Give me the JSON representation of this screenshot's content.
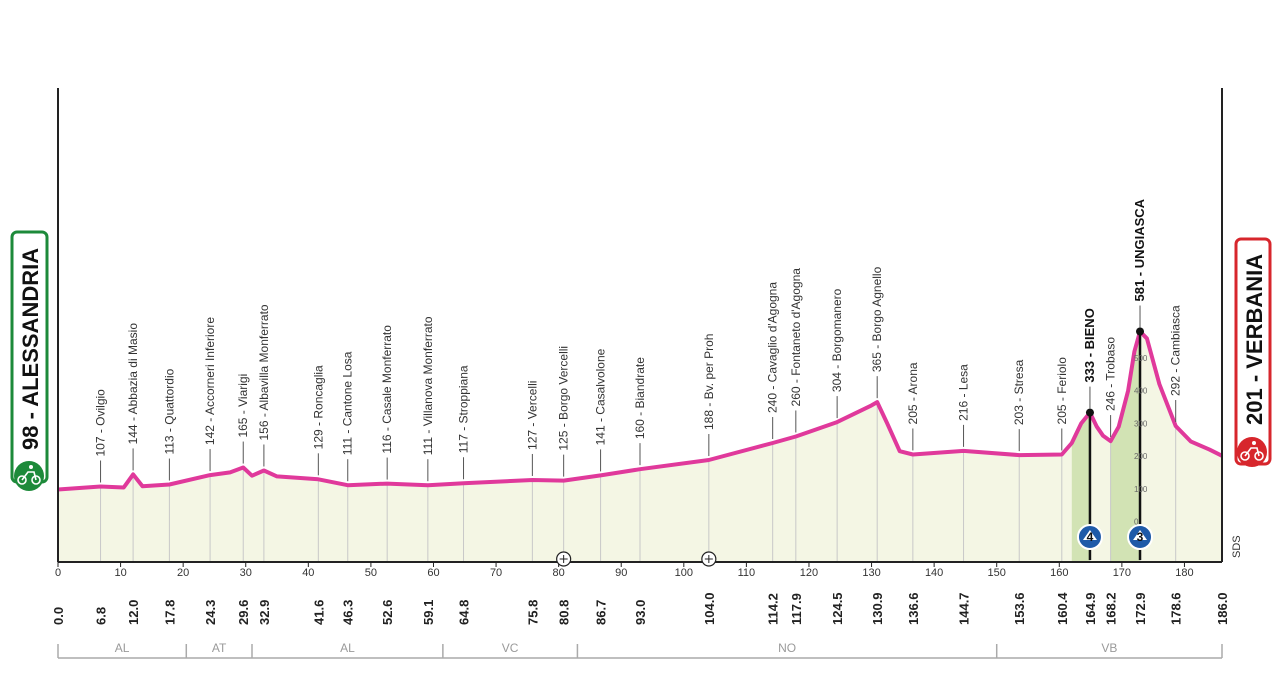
{
  "chart_data": {
    "type": "area",
    "title": "",
    "start": {
      "label": "98 - ALESSANDRIA",
      "color": "#1d8a3a"
    },
    "finish": {
      "label": "201 - VERBANIA",
      "color": "#d7262c"
    },
    "xlim": [
      0,
      186
    ],
    "x_ticks": [
      0,
      10,
      20,
      30,
      40,
      50,
      60,
      70,
      80,
      90,
      100,
      110,
      120,
      130,
      140,
      150,
      160,
      170,
      180
    ],
    "km_marks": [
      "0.0",
      "6.8",
      "12.0",
      "17.8",
      "24.3",
      "29.6",
      "32.9",
      "41.6",
      "46.3",
      "52.6",
      "59.1",
      "64.8",
      "75.8",
      "80.8",
      "86.7",
      "93.0",
      "104.0",
      "114.2",
      "117.9",
      "124.5",
      "130.9",
      "136.6",
      "144.7",
      "153.6",
      "160.4",
      "164.9",
      "168.2",
      "172.9",
      "178.6",
      "186.0"
    ],
    "bold_km_marks": [
      "0.0",
      "164.9",
      "172.9",
      "186.0"
    ],
    "towns": [
      {
        "km": 6.8,
        "label": "107 - Ovilgio"
      },
      {
        "km": 12.0,
        "label": "144 - Abbazia di Masio"
      },
      {
        "km": 17.8,
        "label": "113 - Quattordio"
      },
      {
        "km": 24.3,
        "label": "142 - Accorneri Inferiore"
      },
      {
        "km": 29.6,
        "label": "165 - Viarigi"
      },
      {
        "km": 32.9,
        "label": "156 - Albavilla Monferrato"
      },
      {
        "km": 41.6,
        "label": "129 - Roncaglia"
      },
      {
        "km": 46.3,
        "label": "111 - Cantone Losa"
      },
      {
        "km": 52.6,
        "label": "116 - Casale Monferrato"
      },
      {
        "km": 59.1,
        "label": "111 - Villanova Monferrato"
      },
      {
        "km": 64.8,
        "label": "117 - Stroppiana"
      },
      {
        "km": 75.8,
        "label": "127 - Vercelli"
      },
      {
        "km": 80.8,
        "label": "125 - Borgo Vercelli"
      },
      {
        "km": 86.7,
        "label": "141 - Casalvolone"
      },
      {
        "km": 93.0,
        "label": "160 - Biandrate"
      },
      {
        "km": 104.0,
        "label": "188 - Bv. per Proh"
      },
      {
        "km": 114.2,
        "label": "240 - Cavaglio d'Agogna"
      },
      {
        "km": 117.9,
        "label": "260 - Fontaneto d'Agogna"
      },
      {
        "km": 124.5,
        "label": "304 - Borgomanero"
      },
      {
        "km": 130.9,
        "label": "365 - Borgo Agnello"
      },
      {
        "km": 136.6,
        "label": "205 - Arona"
      },
      {
        "km": 144.7,
        "label": "216 - Lesa"
      },
      {
        "km": 153.6,
        "label": "203 - Stresa"
      },
      {
        "km": 160.4,
        "label": "205 - Feriolo"
      },
      {
        "km": 164.9,
        "label": "333 - BIENO",
        "bold": true
      },
      {
        "km": 168.2,
        "label": "246 - Trobaso"
      },
      {
        "km": 172.9,
        "label": "581 - UNGIASCA",
        "bold": true
      },
      {
        "km": 178.6,
        "label": "292 - Cambiasca"
      }
    ],
    "profile": [
      [
        0,
        98
      ],
      [
        6.8,
        107
      ],
      [
        10.5,
        104
      ],
      [
        12.0,
        144
      ],
      [
        13.5,
        108
      ],
      [
        17.8,
        113
      ],
      [
        24.3,
        142
      ],
      [
        27.5,
        150
      ],
      [
        29.6,
        165
      ],
      [
        31.0,
        140
      ],
      [
        32.9,
        156
      ],
      [
        35.0,
        138
      ],
      [
        41.6,
        129
      ],
      [
        46.3,
        111
      ],
      [
        52.6,
        116
      ],
      [
        59.1,
        111
      ],
      [
        64.8,
        117
      ],
      [
        75.8,
        127
      ],
      [
        80.8,
        125
      ],
      [
        86.7,
        141
      ],
      [
        93.0,
        160
      ],
      [
        104.0,
        188
      ],
      [
        114.2,
        240
      ],
      [
        117.9,
        260
      ],
      [
        124.5,
        304
      ],
      [
        130.0,
        355
      ],
      [
        130.9,
        365
      ],
      [
        132.5,
        300
      ],
      [
        134.5,
        215
      ],
      [
        136.6,
        205
      ],
      [
        144.7,
        216
      ],
      [
        153.6,
        203
      ],
      [
        160.4,
        205
      ],
      [
        162.0,
        240
      ],
      [
        163.5,
        300
      ],
      [
        164.9,
        333
      ],
      [
        166.0,
        290
      ],
      [
        167.0,
        262
      ],
      [
        168.2,
        246
      ],
      [
        169.5,
        290
      ],
      [
        171.0,
        400
      ],
      [
        172.0,
        520
      ],
      [
        172.9,
        581
      ],
      [
        174.0,
        560
      ],
      [
        176.0,
        420
      ],
      [
        178.6,
        292
      ],
      [
        181.0,
        245
      ],
      [
        184.0,
        220
      ],
      [
        186.0,
        201
      ]
    ],
    "climbs": [
      {
        "km": 164.9,
        "name": "333 - BIENO",
        "category": "4",
        "start_km": 162.0
      },
      {
        "km": 172.9,
        "name": "581 - UNGIASCA",
        "category": "3",
        "start_km": 168.2
      }
    ],
    "climb_scale": [
      "500",
      "400",
      "300",
      "200",
      "100",
      "0"
    ],
    "special_markers": [
      80.8,
      104.0
    ],
    "regions": [
      {
        "code": "AL",
        "from": 0,
        "to": 20.5
      },
      {
        "code": "AT",
        "from": 20.5,
        "to": 31
      },
      {
        "code": "AL",
        "from": 31,
        "to": 61.5
      },
      {
        "code": "VC",
        "from": 61.5,
        "to": 83
      },
      {
        "code": "NO",
        "from": 83,
        "to": 150
      },
      {
        "code": "VB",
        "from": 150,
        "to": 186
      }
    ],
    "brand": "SDS",
    "colors": {
      "profile_line": "#e0399b",
      "profile_fill": "#f4f6e4",
      "climb_fill": "#d2e3b4",
      "axis": "#222222",
      "grid": "#c8c8c8"
    }
  }
}
